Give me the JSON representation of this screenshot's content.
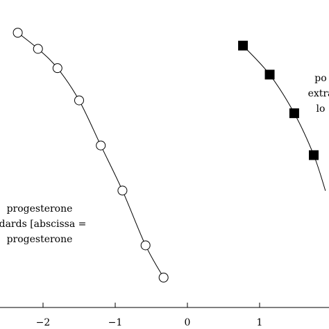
{
  "chart_data": {
    "type": "scatter",
    "xticks": [
      -2,
      -1,
      0,
      1
    ],
    "xtick_labels": [
      "−2",
      "−1",
      "0",
      "1"
    ],
    "xlim": [
      -2.6,
      1.9
    ],
    "ylim": [
      0.08,
      1.0
    ],
    "series": [
      {
        "marker": "open-circle",
        "color": "#000000",
        "x": [
          -2.35,
          -2.07,
          -1.8,
          -1.5,
          -1.2,
          -0.9,
          -0.58,
          -0.33
        ],
        "y": [
          0.92,
          0.87,
          0.81,
          0.71,
          0.57,
          0.43,
          0.26,
          0.16
        ]
      },
      {
        "marker": "filled-square",
        "color": "#000000",
        "x": [
          0.77,
          1.14,
          1.48,
          1.75
        ],
        "y": [
          0.88,
          0.79,
          0.67,
          0.54
        ]
      }
    ],
    "annotations": [
      {
        "lines": [
          "progesterone",
          "ndards [abscissa =",
          "progesterone"
        ]
      },
      {
        "lines": [
          "po",
          "extra",
          "lo"
        ]
      }
    ]
  }
}
